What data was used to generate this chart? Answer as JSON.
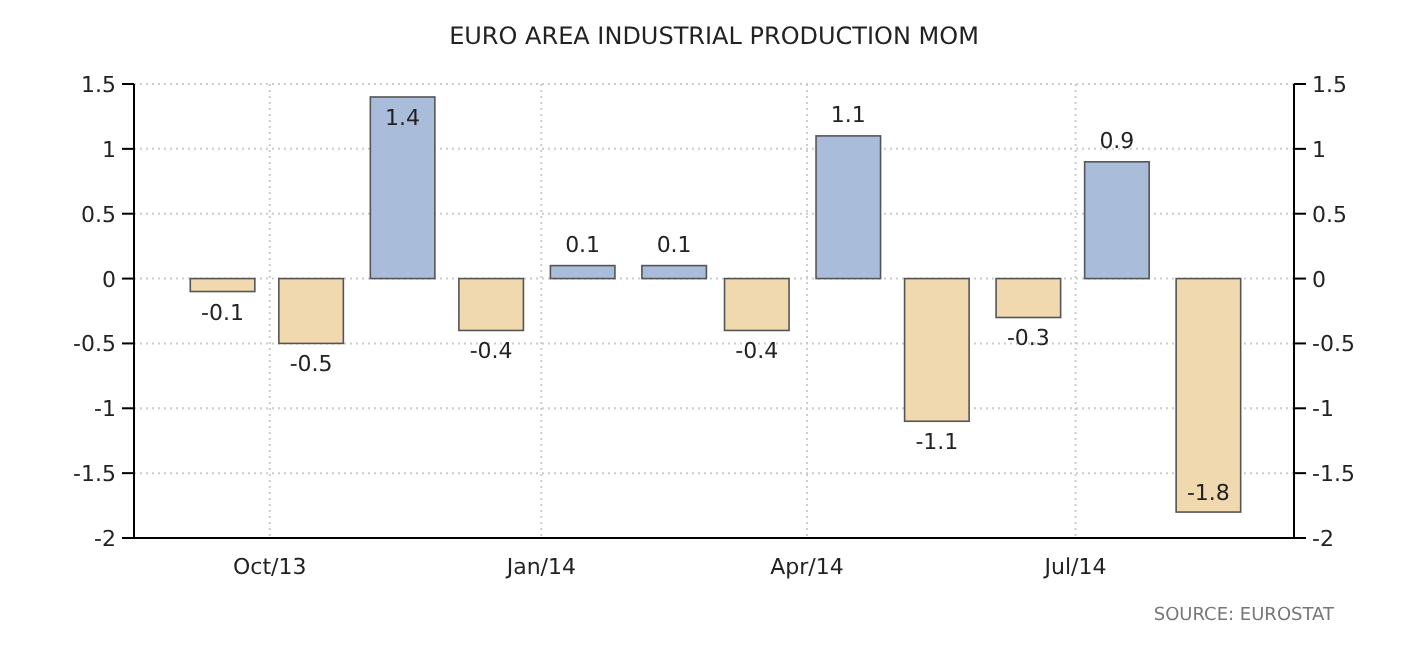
{
  "chart_data": {
    "type": "bar",
    "title": "EURO AREA INDUSTRIAL PRODUCTION MOM",
    "x": [
      "2013-09-15",
      "2013-10-15",
      "2013-11-15",
      "2013-12-15",
      "2014-01-15",
      "2014-02-15",
      "2014-03-15",
      "2014-04-15",
      "2014-05-15",
      "2014-06-15",
      "2014-07-15",
      "2014-08-15"
    ],
    "values": [
      -0.1,
      -0.5,
      1.4,
      -0.4,
      0.1,
      0.1,
      -0.4,
      1.1,
      -1.1,
      -0.3,
      0.9,
      -1.8
    ],
    "colors": [
      "#f0d9ae",
      "#f0d9ae",
      "#a9bcda",
      "#f0d9ae",
      "#a9bcda",
      "#a9bcda",
      "#f0d9ae",
      "#a9bcda",
      "#f0d9ae",
      "#f0d9ae",
      "#a9bcda",
      "#f0d9ae"
    ],
    "xlim": [
      "2013-08-16",
      "2014-09-13"
    ],
    "xticks": [
      {
        "value": "2013-10-01",
        "label": "Oct/13"
      },
      {
        "value": "2014-01-01",
        "label": "Jan/14"
      },
      {
        "value": "2014-04-01",
        "label": "Apr/14"
      },
      {
        "value": "2014-07-01",
        "label": "Jul/14"
      }
    ],
    "ylim": [
      -2,
      1.5
    ],
    "yticks": [
      -2,
      -1.5,
      -1,
      -0.5,
      0,
      0.5,
      1,
      1.5
    ],
    "y2lim": [
      -2,
      1.5
    ],
    "y2ticks": [
      -2,
      -1.5,
      -1,
      -0.5,
      0,
      0.5,
      1,
      1.5
    ],
    "grid": true,
    "data_labels": true,
    "annotations": [
      "SOURCE: EUROSTAT"
    ]
  }
}
